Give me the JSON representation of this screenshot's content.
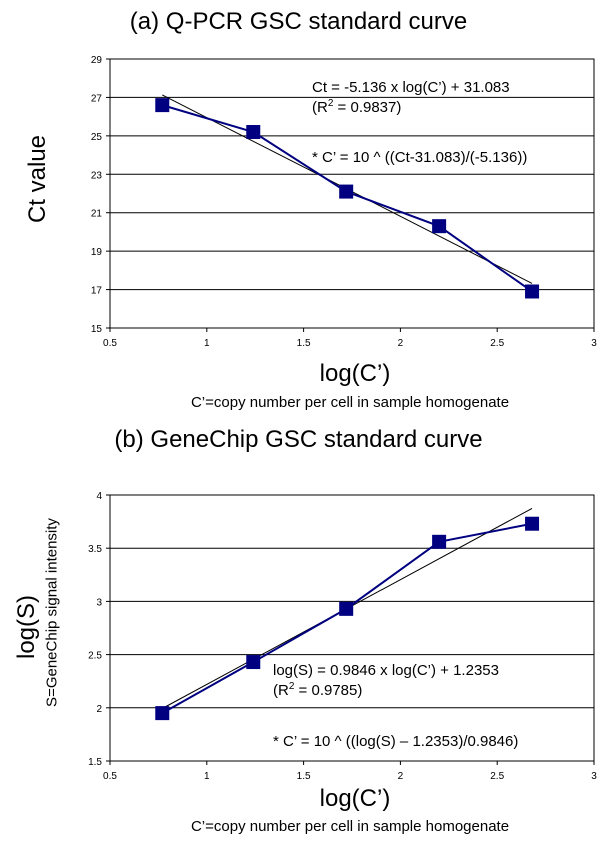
{
  "chart_data": [
    {
      "type": "scatter",
      "title": "(a) Q-PCR GSC standard curve",
      "xlabel": "log(C’)",
      "xnote": "C’=copy number per cell in sample homogenate",
      "ylabel": "Ct value",
      "ylabel_sub": "",
      "xlim": [
        0.5,
        3
      ],
      "ylim": [
        15,
        29
      ],
      "xticks": [
        0.5,
        1,
        1.5,
        2,
        2.5,
        3
      ],
      "yticks": [
        15,
        17,
        19,
        21,
        23,
        25,
        27,
        29
      ],
      "grid": "horizontal",
      "series": [
        {
          "x": [
            0.77,
            1.24,
            1.72,
            2.2,
            2.68
          ],
          "y": [
            26.6,
            25.2,
            22.1,
            20.3,
            16.9
          ],
          "color": "#000080"
        }
      ],
      "trendline": {
        "slope": -5.136,
        "intercept": 31.083,
        "x_range": [
          0.77,
          2.68
        ]
      },
      "annotations": [
        {
          "line1_pre": "Ct = -5.136 x log(C’) + 31.083",
          "line2": {
            "pre": "(R",
            "sup": "2",
            "post": " = 0.9837)"
          }
        },
        {
          "text": "* C’ = 10 ^ ((Ct-31.083)/(-5.136))"
        }
      ]
    },
    {
      "type": "scatter",
      "title": "(b) GeneChip GSC standard curve",
      "xlabel": "log(C’)",
      "xnote": "C’=copy number per cell in sample homogenate",
      "ylabel": "log(S)",
      "ylabel_sub": "S=GeneChip signal intensity",
      "xlim": [
        0.5,
        3
      ],
      "ylim": [
        1.5,
        4
      ],
      "xticks": [
        0.5,
        1,
        1.5,
        2,
        2.5,
        3
      ],
      "yticks": [
        1.5,
        2,
        2.5,
        3,
        3.5,
        4
      ],
      "grid": "horizontal",
      "series": [
        {
          "x": [
            0.77,
            1.24,
            1.72,
            2.2,
            2.68
          ],
          "y": [
            1.95,
            2.43,
            2.93,
            3.56,
            3.73
          ],
          "color": "#000080"
        }
      ],
      "trendline": {
        "slope": 0.9846,
        "intercept": 1.2353,
        "x_range": [
          0.77,
          2.68
        ]
      },
      "annotations": [
        {
          "line1_pre": "log(S) = 0.9846 x log(C’) + 1.2353",
          "line2": {
            "pre": "(R",
            "sup": "2",
            "post": " = 0.9785)"
          }
        },
        {
          "text": "* C’ = 10 ^ ((log(S) – 1.2353)/0.9846)"
        }
      ]
    }
  ]
}
